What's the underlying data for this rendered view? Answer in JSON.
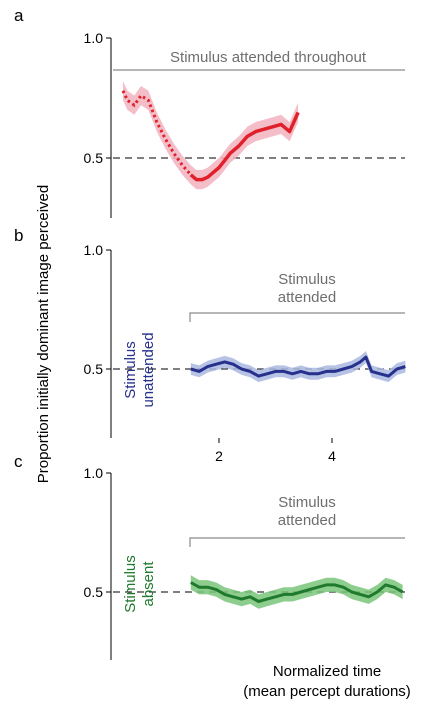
{
  "figure": {
    "ylabel": "Proportion initially dominant image perceived",
    "xlabel_line1": "Normalized time",
    "xlabel_line2": "(mean percept durations)"
  },
  "chart_data": [
    {
      "panel": "a",
      "type": "line",
      "ylim": [
        0.25,
        1.0
      ],
      "yticks": [
        "1.0",
        "0.5"
      ],
      "annotation": "Stimulus attended throughout",
      "reference_line": 0.5,
      "color": "#e0202a",
      "band_color": "#f2b3bf",
      "dotted_segment": {
        "x": [
          0.3,
          0.38,
          0.5,
          0.62,
          0.75,
          0.9,
          1.05,
          1.2,
          1.35,
          1.5
        ],
        "y": [
          0.78,
          0.74,
          0.72,
          0.76,
          0.74,
          0.65,
          0.58,
          0.52,
          0.47,
          0.43
        ]
      },
      "solid_segment": {
        "x": [
          1.5,
          1.6,
          1.7,
          1.8,
          1.9,
          2.0,
          2.1,
          2.2,
          2.35,
          2.5,
          2.65,
          2.8,
          2.95,
          3.1,
          3.25,
          3.4
        ],
        "y": [
          0.43,
          0.41,
          0.41,
          0.42,
          0.44,
          0.46,
          0.49,
          0.52,
          0.55,
          0.59,
          0.61,
          0.62,
          0.63,
          0.64,
          0.61,
          0.69
        ]
      },
      "band_halfwidth": 0.04
    },
    {
      "panel": "b",
      "type": "line",
      "ylim": [
        0.25,
        1.0
      ],
      "yticks": [
        "1.0",
        "0.5"
      ],
      "xticks": [
        "2",
        "4"
      ],
      "annotation_line1": "Stimulus",
      "annotation_line2": "attended",
      "series_label_line1": "Stimulus",
      "series_label_line2": "unattended",
      "reference_line": 0.5,
      "color": "#27308c",
      "band_color": "#a9b8e0",
      "x": [
        1.5,
        1.65,
        1.8,
        1.95,
        2.1,
        2.25,
        2.4,
        2.55,
        2.7,
        2.85,
        3.0,
        3.15,
        3.3,
        3.45,
        3.6,
        3.75,
        3.9,
        4.05,
        4.2,
        4.35,
        4.5,
        4.6,
        4.7,
        4.85,
        5.0,
        5.15,
        5.3
      ],
      "y": [
        0.5,
        0.49,
        0.51,
        0.52,
        0.53,
        0.52,
        0.5,
        0.49,
        0.47,
        0.48,
        0.49,
        0.49,
        0.48,
        0.49,
        0.48,
        0.48,
        0.49,
        0.49,
        0.5,
        0.51,
        0.53,
        0.55,
        0.49,
        0.48,
        0.47,
        0.5,
        0.51
      ],
      "band_halfwidth": 0.025
    },
    {
      "panel": "c",
      "type": "line",
      "ylim": [
        0.25,
        1.0
      ],
      "yticks": [
        "1.0",
        "0.5"
      ],
      "annotation_line1": "Stimulus",
      "annotation_line2": "attended",
      "series_label_line1": "Stimulus",
      "series_label_line2": "absent",
      "reference_line": 0.5,
      "color": "#1f7a2e",
      "band_color": "#79c479",
      "x": [
        1.5,
        1.65,
        1.8,
        1.95,
        2.1,
        2.25,
        2.4,
        2.55,
        2.7,
        2.85,
        3.0,
        3.15,
        3.3,
        3.45,
        3.6,
        3.75,
        3.9,
        4.05,
        4.2,
        4.35,
        4.5,
        4.65,
        4.8,
        4.95,
        5.1,
        5.25
      ],
      "y": [
        0.54,
        0.52,
        0.52,
        0.51,
        0.49,
        0.48,
        0.47,
        0.48,
        0.46,
        0.47,
        0.48,
        0.49,
        0.49,
        0.5,
        0.51,
        0.52,
        0.53,
        0.53,
        0.52,
        0.5,
        0.49,
        0.48,
        0.5,
        0.53,
        0.52,
        0.5
      ],
      "band_halfwidth": 0.03
    }
  ]
}
